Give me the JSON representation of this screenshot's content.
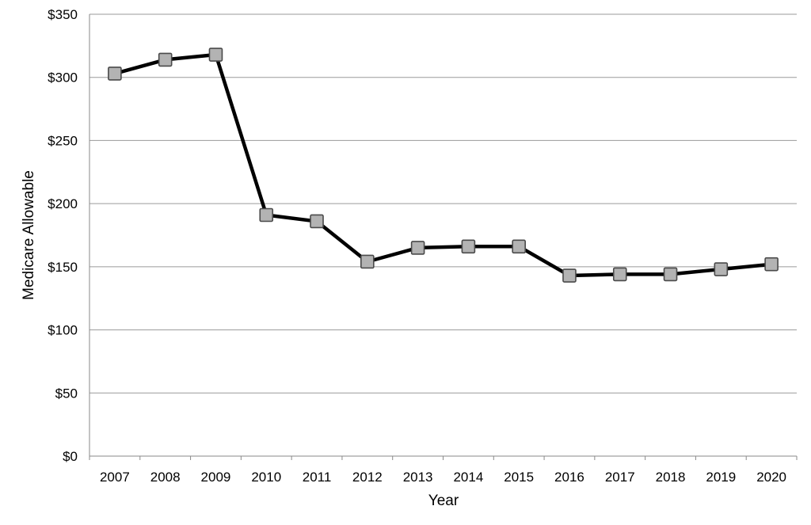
{
  "chart_data": {
    "type": "line",
    "title": "",
    "xlabel": "Year",
    "ylabel": "Medicare Allowable",
    "categories": [
      "2007",
      "2008",
      "2009",
      "2010",
      "2011",
      "2012",
      "2013",
      "2014",
      "2015",
      "2016",
      "2017",
      "2018",
      "2019",
      "2020"
    ],
    "series": [
      {
        "values": [
          303,
          314,
          318,
          191,
          186,
          154,
          165,
          166,
          166,
          143,
          144,
          144,
          148,
          152
        ],
        "line_color": "#000000",
        "marker": "square",
        "marker_fill": "#b3b3b3",
        "marker_edge": "#4a4a4a"
      }
    ],
    "ylim": [
      0,
      350
    ],
    "y_ticks": [
      0,
      50,
      100,
      150,
      200,
      250,
      300,
      350
    ],
    "y_tick_labels": [
      "$0",
      "$50",
      "$100",
      "$150",
      "$200",
      "$250",
      "$300",
      "$350"
    ],
    "grid": "horizontal",
    "grid_color": "#9a9a9a",
    "legend": "none"
  }
}
